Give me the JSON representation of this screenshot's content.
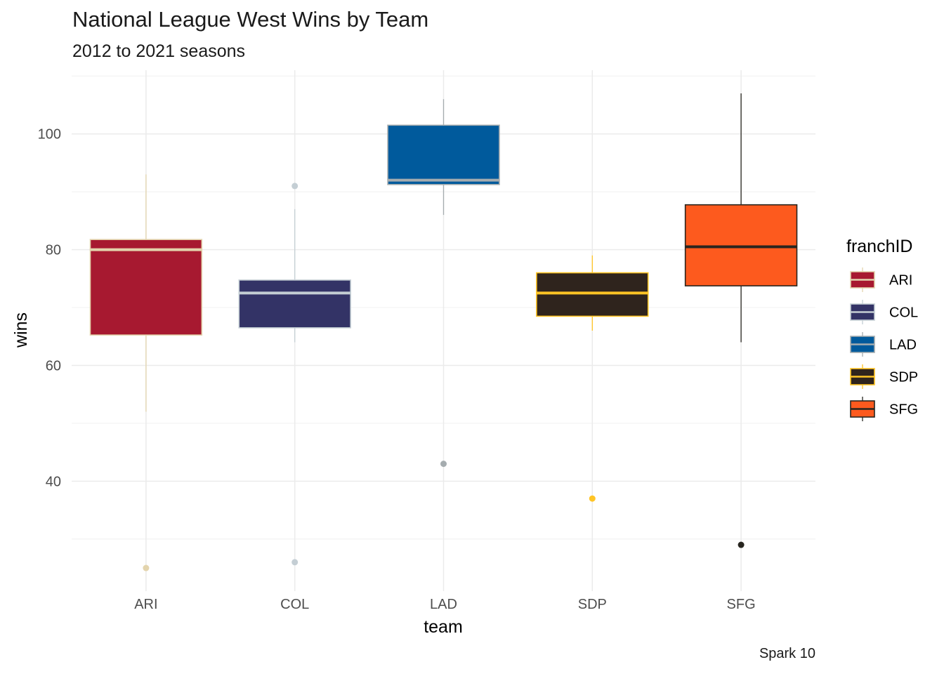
{
  "chart_data": {
    "type": "box",
    "title": "National League West Wins by Team",
    "subtitle": "2012 to 2021 seasons",
    "caption": "Spark 10",
    "xlabel": "team",
    "ylabel": "wins",
    "ylim": [
      21,
      111
    ],
    "yticks": [
      40,
      60,
      80,
      100
    ],
    "grid": true,
    "legend": {
      "title": "franchID",
      "position": "right"
    },
    "categories": [
      "ARI",
      "COL",
      "LAD",
      "SDP",
      "SFG"
    ],
    "series": [
      {
        "name": "ARI",
        "min": 52,
        "q1": 65.25,
        "median": 80,
        "q3": 81.75,
        "max": 93,
        "outliers": [
          25
        ],
        "fill": "#A71930",
        "line": "#E3D4AD"
      },
      {
        "name": "COL",
        "min": 64,
        "q1": 66.5,
        "median": 72.5,
        "q3": 74.75,
        "max": 87,
        "outliers": [
          91,
          26
        ],
        "fill": "#333366",
        "line": "#C4CED4"
      },
      {
        "name": "LAD",
        "min": 86,
        "q1": 91.25,
        "median": 92,
        "q3": 101.5,
        "max": 106,
        "outliers": [
          43
        ],
        "fill": "#005A9C",
        "line": "#A5ACAF"
      },
      {
        "name": "SDP",
        "min": 66,
        "q1": 68.5,
        "median": 72.5,
        "q3": 76,
        "max": 79,
        "outliers": [
          37
        ],
        "fill": "#2F241D",
        "line": "#FFC425"
      },
      {
        "name": "SFG",
        "min": 64,
        "q1": 73.75,
        "median": 80.5,
        "q3": 87.75,
        "max": 107,
        "outliers": [
          29
        ],
        "fill": "#FD5A1E",
        "line": "#27251F"
      }
    ]
  }
}
